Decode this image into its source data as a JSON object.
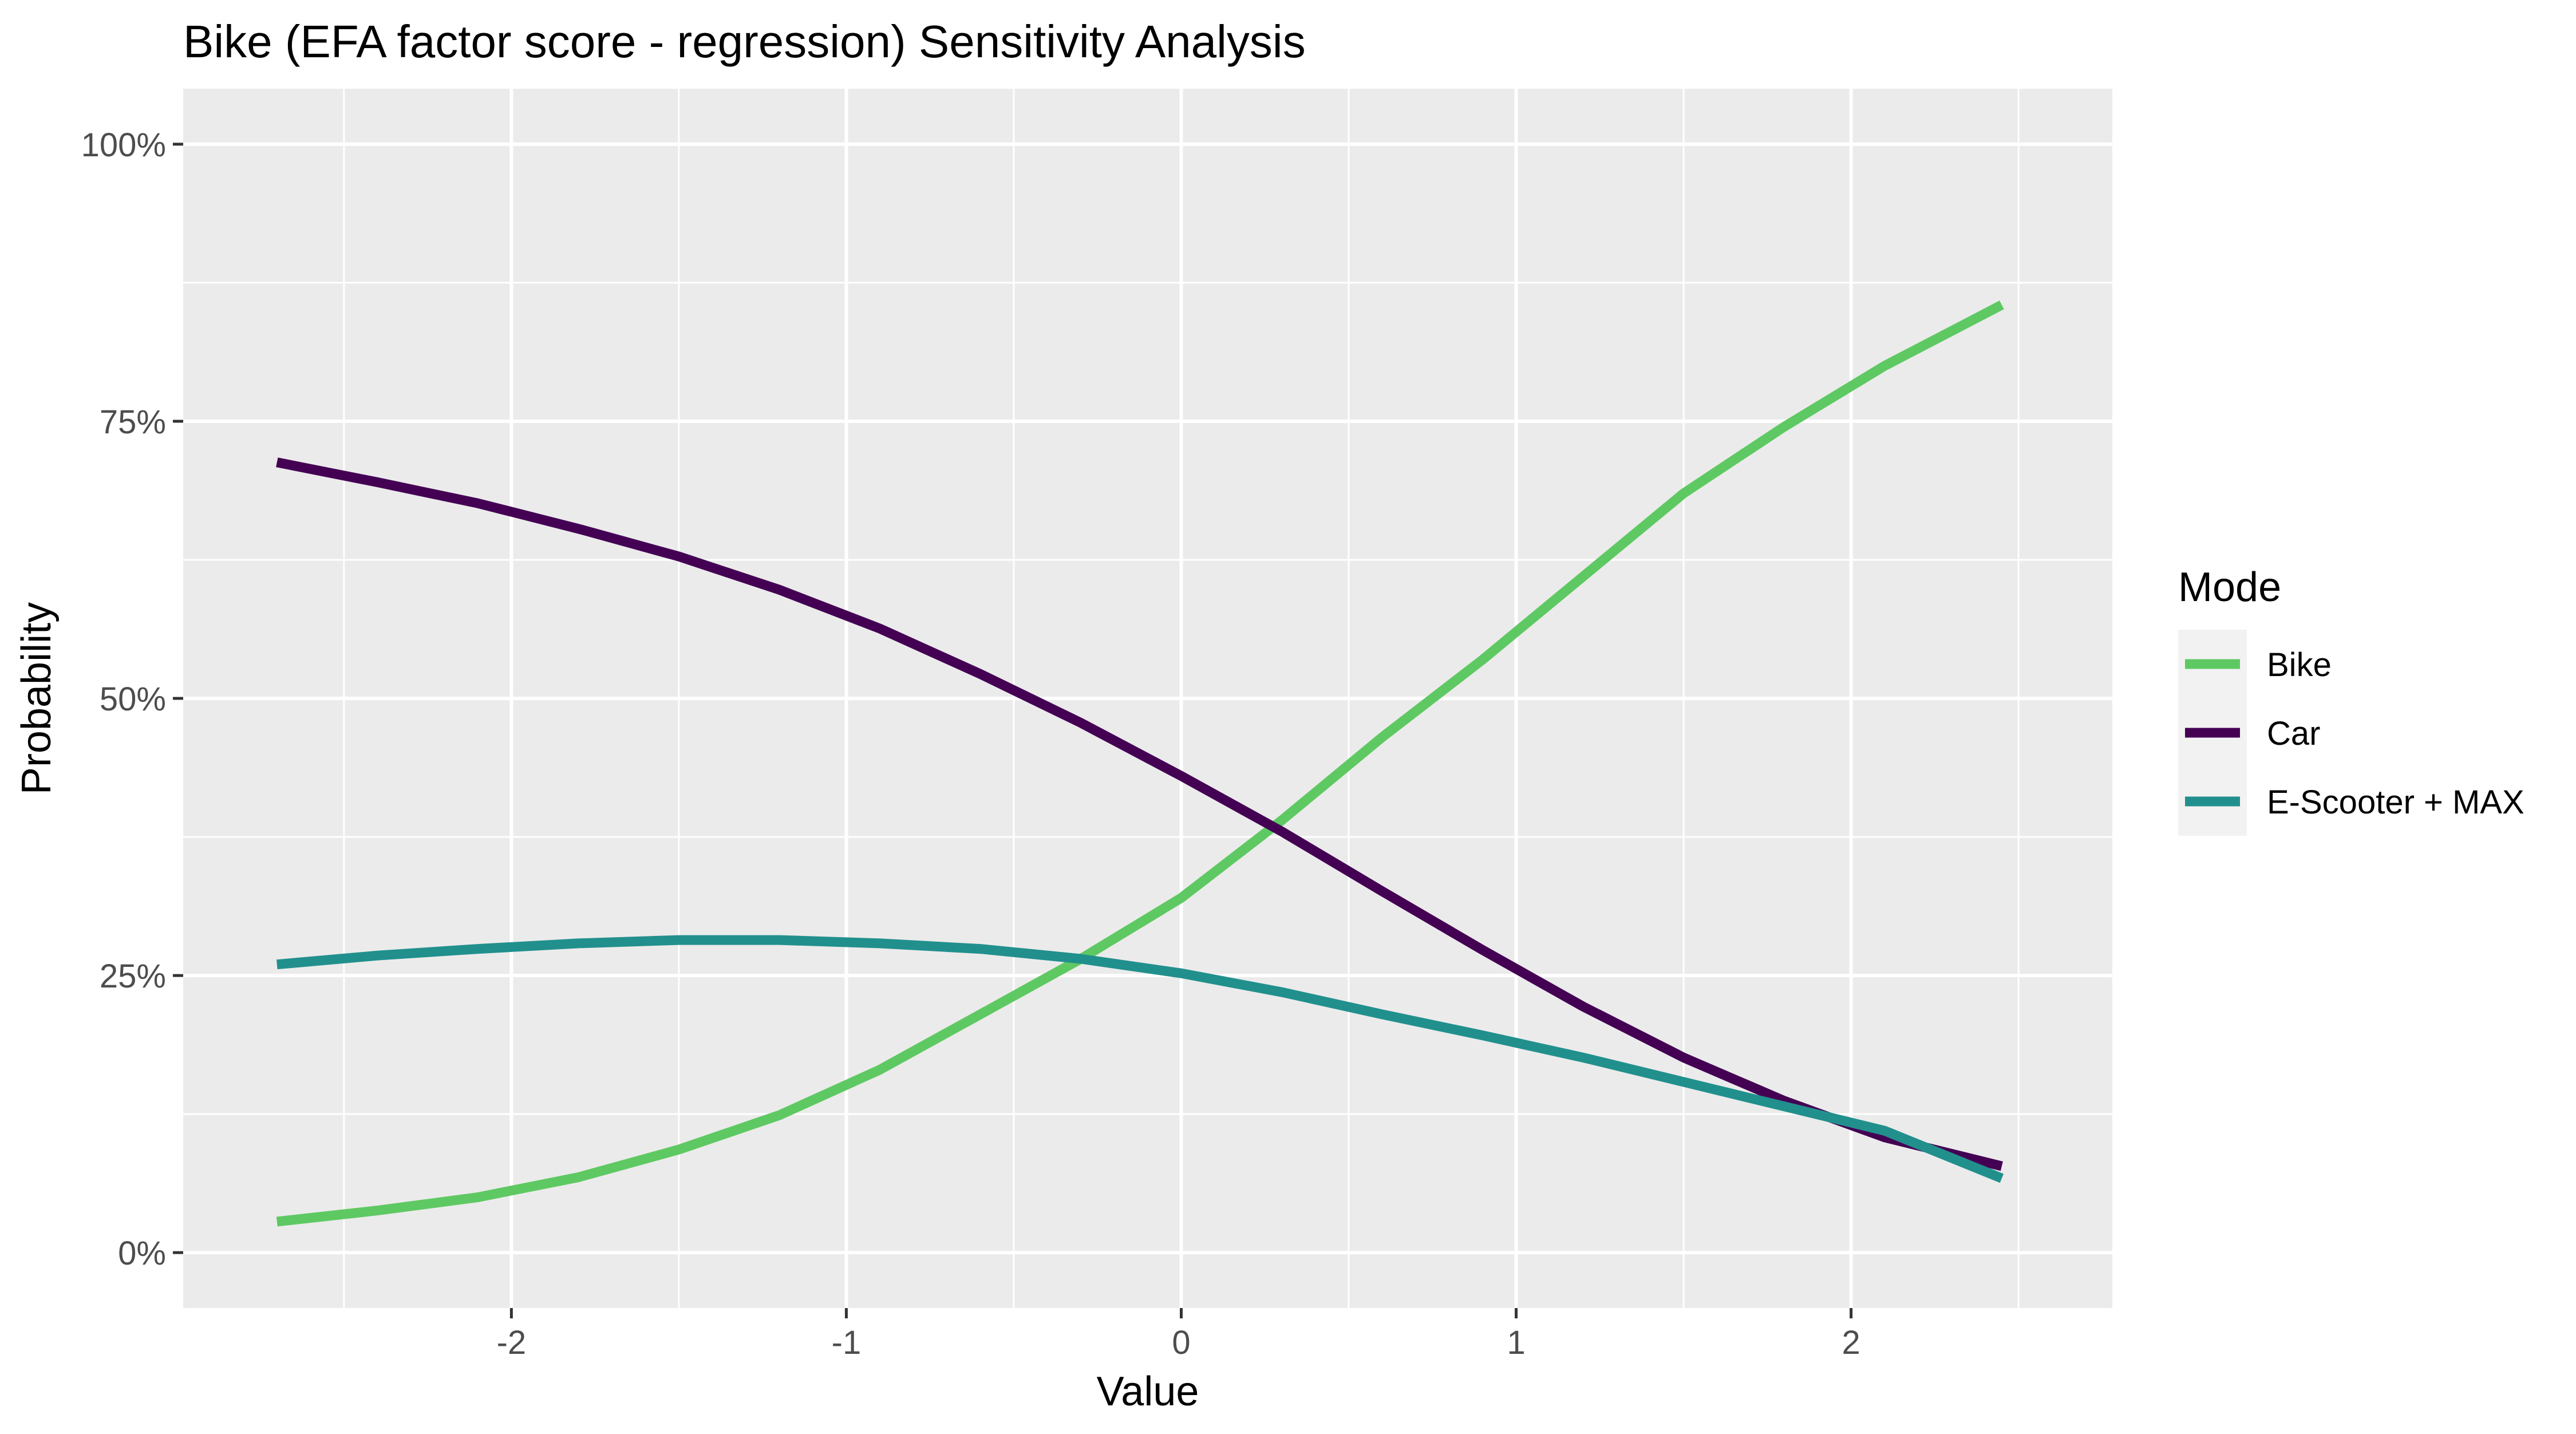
{
  "chart_data": {
    "type": "line",
    "title": "Bike (EFA factor score - regression) Sensitivity Analysis",
    "xlabel": "Value",
    "ylabel": "Probability",
    "xlim": [
      -2.98,
      2.78
    ],
    "ylim": [
      -0.05,
      1.05
    ],
    "x_ticks": [
      -2,
      -1,
      0,
      1,
      2
    ],
    "x_tick_labels": [
      "-2",
      "-1",
      "0",
      "1",
      "2"
    ],
    "y_ticks": [
      0,
      0.25,
      0.5,
      0.75,
      1.0
    ],
    "y_tick_labels": [
      "0%",
      "25%",
      "50%",
      "75%",
      "100%"
    ],
    "grid": true,
    "legend": {
      "title": "Mode",
      "placement": "right",
      "entries": [
        "Bike",
        "Car",
        "E-Scooter + MAX"
      ]
    },
    "x": [
      -2.7,
      -2.4,
      -2.1,
      -1.8,
      -1.5,
      -1.2,
      -0.9,
      -0.6,
      -0.3,
      0.0,
      0.3,
      0.6,
      0.9,
      1.2,
      1.5,
      1.8,
      2.1,
      2.45
    ],
    "series": [
      {
        "name": "Bike",
        "color": "#5ec962",
        "values": [
          0.028,
          0.038,
          0.05,
          0.068,
          0.093,
          0.124,
          0.165,
          0.215,
          0.265,
          0.32,
          0.39,
          0.465,
          0.535,
          0.61,
          0.685,
          0.745,
          0.8,
          0.855
        ]
      },
      {
        "name": "Car",
        "color": "#440154",
        "values": [
          0.713,
          0.695,
          0.676,
          0.653,
          0.628,
          0.598,
          0.563,
          0.522,
          0.478,
          0.43,
          0.38,
          0.326,
          0.273,
          0.222,
          0.176,
          0.137,
          0.104,
          0.078
        ]
      },
      {
        "name": "E-Scooter + MAX",
        "color": "#21908d",
        "values": [
          0.26,
          0.268,
          0.274,
          0.279,
          0.282,
          0.282,
          0.279,
          0.274,
          0.265,
          0.252,
          0.235,
          0.215,
          0.196,
          0.176,
          0.154,
          0.132,
          0.11,
          0.067
        ]
      }
    ]
  }
}
